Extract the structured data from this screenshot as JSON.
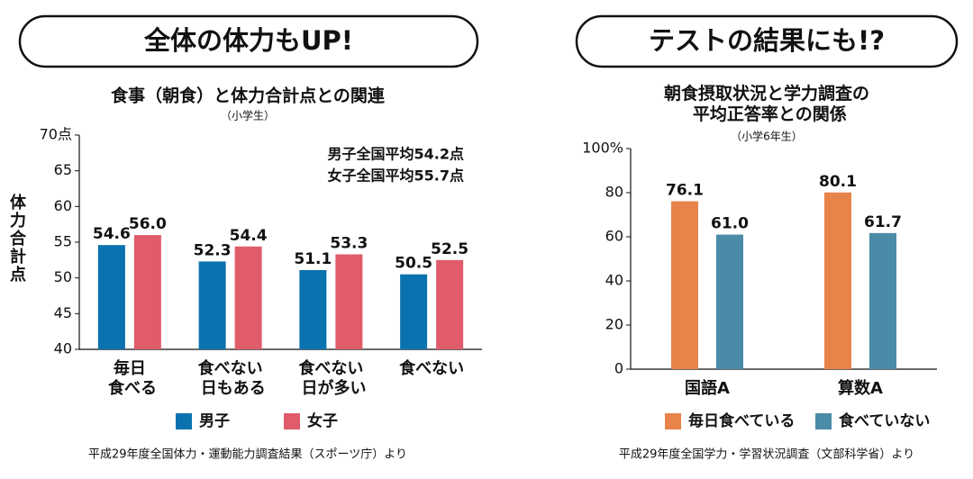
{
  "chart_data": [
    {
      "type": "bar",
      "banner": "全体の体力もUP!",
      "title": "食事（朝食）と体力合計点との関連",
      "subtitle": "（小学生）",
      "y_label": "体力合計点",
      "categories": [
        "毎日\n食べる",
        "食べない\n日もある",
        "食べない\n日が多い",
        "食べない"
      ],
      "series": [
        {
          "name": "男子",
          "color": "#0a72ae",
          "values": [
            54.6,
            52.3,
            51.1,
            50.5
          ],
          "value_labels": [
            "54.6",
            "52.3",
            "51.1",
            "50.5"
          ]
        },
        {
          "name": "女子",
          "color": "#e05c6a",
          "values": [
            56.0,
            54.4,
            53.3,
            52.5
          ],
          "value_labels": [
            "56.0",
            "54.4",
            "53.3",
            "52.5"
          ]
        }
      ],
      "ylim": [
        40,
        70
      ],
      "yticks": [
        40,
        45,
        50,
        55,
        60,
        65,
        {
          "value": 70,
          "label": "70点"
        }
      ],
      "grid": false,
      "annotations": [
        "男子全国平均54.2点",
        "女子全国平均55.7点"
      ],
      "source": "平成29年度全国体力・運動能力調査結果（スポーツ庁）より"
    },
    {
      "type": "bar",
      "banner": "テストの結果にも!?",
      "title": "朝食摂取状況と学力調査の\n平均正答率との関係",
      "subtitle": "（小学6年生）",
      "categories": [
        "国語A",
        "算数A"
      ],
      "series": [
        {
          "name": "毎日食べている",
          "color": "#e8834a",
          "values": [
            76.1,
            80.1
          ],
          "value_labels": [
            "76.1",
            "80.1"
          ]
        },
        {
          "name": "食べていない",
          "color": "#4a8ba8",
          "values": [
            61.0,
            61.7
          ],
          "value_labels": [
            "61.0",
            "61.7"
          ]
        }
      ],
      "ylim": [
        0,
        100
      ],
      "yticks": [
        0,
        20,
        40,
        60,
        80,
        {
          "value": 100,
          "label": "100%"
        }
      ],
      "grid": false,
      "source": "平成29年度全国学力・学習状況調査（文部科学省）より"
    }
  ]
}
